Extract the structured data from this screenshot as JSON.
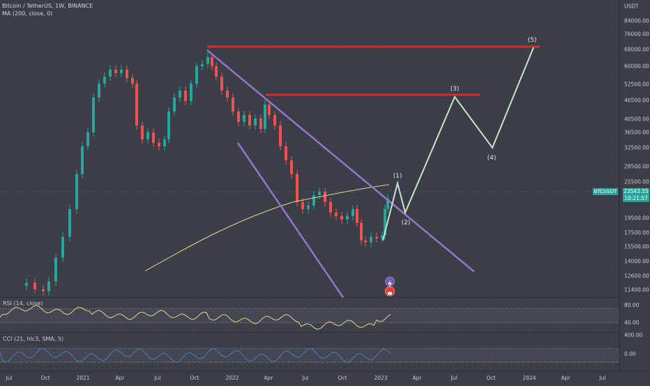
{
  "header": {
    "symbol_line": "Bitcoin / TetherUS, 1W, BINANCE",
    "ma_line": "MA (200, close, 0)"
  },
  "price_axis": {
    "currency": "USDT",
    "ticks": [
      "84000.00",
      "76000.00",
      "68000.00",
      "60000.00",
      "52500.00",
      "46500.00",
      "40500.00",
      "36500.00",
      "32500.00",
      "28500.00",
      "25500.00",
      "19500.00",
      "17500.00",
      "15500.00",
      "14000.00",
      "12600.00",
      "11400.00"
    ]
  },
  "last_price": {
    "symbol": "BTCUSDT",
    "price": "23543.55",
    "countdown": "10:21:57",
    "color": "#26a69a"
  },
  "time_axis": {
    "ticks": [
      "Jul",
      "Oct",
      "2021",
      "Apr",
      "Jul",
      "Oct",
      "2022",
      "Apr",
      "Jul",
      "Oct",
      "2023",
      "Apr",
      "Jul",
      "Oct",
      "2024",
      "Apr",
      "Jul"
    ]
  },
  "wave_labels": [
    "(1)",
    "(2)",
    "(3)",
    "(4)",
    "(5)"
  ],
  "rsi": {
    "label": "RSI (14, close)",
    "ticks": [
      "80.00",
      "40.00"
    ]
  },
  "cci": {
    "label": "CCI (21, hlc3, SMA, 5)",
    "ticks": [
      "400.00",
      "0.00"
    ]
  },
  "colors": {
    "background": "#3b3e47",
    "up_candle": "#26a69a",
    "down_candle": "#ef5350",
    "resistance": "#d32f2f",
    "channel": "#9575cd",
    "projection": "#c8e6c9",
    "ma": "#e8d58a",
    "rsi_line": "#e8d58a",
    "cci_line": "#4f7cc0"
  },
  "icons": [
    "lightning-icon",
    "event-flag-icon"
  ]
}
